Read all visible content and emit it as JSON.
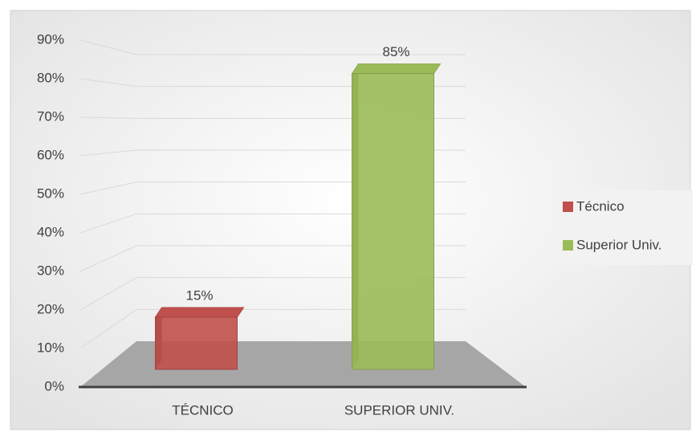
{
  "chart_data": {
    "type": "bar3d",
    "categories": [
      "TÉCNICO",
      "SUPERIOR UNIV."
    ],
    "series": [
      {
        "name": "Técnico",
        "color": "#c0504d",
        "values": [
          15,
          null
        ],
        "value_labels": [
          "15%",
          null
        ]
      },
      {
        "name": "Superior Univ.",
        "color": "#9bbb59",
        "values": [
          null,
          85
        ],
        "value_labels": [
          null,
          "85%"
        ]
      }
    ],
    "ylim": [
      0,
      90
    ],
    "yticks": [
      {
        "value": 0,
        "label": "0%"
      },
      {
        "value": 10,
        "label": "10%"
      },
      {
        "value": 20,
        "label": "20%"
      },
      {
        "value": 30,
        "label": "30%"
      },
      {
        "value": 40,
        "label": "40%"
      },
      {
        "value": 50,
        "label": "50%"
      },
      {
        "value": 60,
        "label": "60%"
      },
      {
        "value": 70,
        "label": "70%"
      },
      {
        "value": 80,
        "label": "80%"
      },
      {
        "value": 90,
        "label": "90%"
      }
    ],
    "grid": true,
    "legend": "right"
  }
}
